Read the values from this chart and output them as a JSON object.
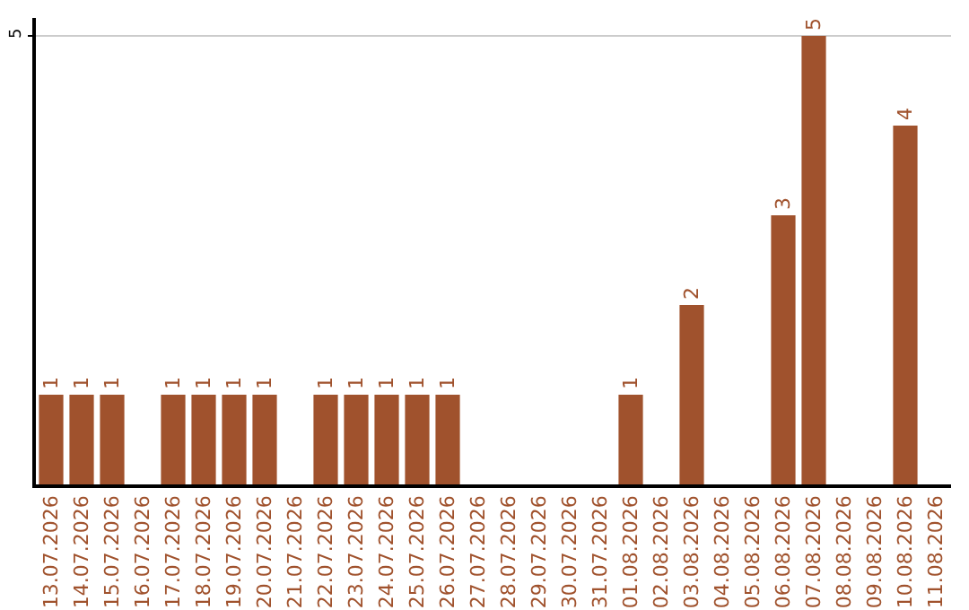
{
  "chart_data": {
    "type": "bar",
    "categories": [
      "13.07.2026",
      "14.07.2026",
      "15.07.2026",
      "16.07.2026",
      "17.07.2026",
      "18.07.2026",
      "19.07.2026",
      "20.07.2026",
      "21.07.2026",
      "22.07.2026",
      "23.07.2026",
      "24.07.2026",
      "25.07.2026",
      "26.07.2026",
      "27.07.2026",
      "28.07.2026",
      "29.07.2026",
      "30.07.2026",
      "31.07.2026",
      "01.08.2026",
      "02.08.2026",
      "03.08.2026",
      "04.08.2026",
      "05.08.2026",
      "06.08.2026",
      "07.08.2026",
      "08.08.2026",
      "09.08.2026",
      "10.08.2026",
      "11.08.2026"
    ],
    "values": [
      1,
      1,
      1,
      0,
      1,
      1,
      1,
      1,
      0,
      1,
      1,
      1,
      1,
      1,
      0,
      0,
      0,
      0,
      0,
      1,
      0,
      2,
      0,
      0,
      3,
      5,
      0,
      0,
      4,
      0
    ],
    "value_labels": [
      "1",
      "1",
      "1",
      null,
      "1",
      "1",
      "1",
      "1",
      null,
      "1",
      "1",
      "1",
      "1",
      "1",
      null,
      null,
      null,
      null,
      null,
      "1",
      null,
      "2",
      null,
      null,
      "3",
      "5",
      null,
      null,
      "4",
      null
    ],
    "color": "#a0522d",
    "ylim": [
      0,
      5.2
    ],
    "yticks": [
      5
    ],
    "grid": "y"
  }
}
